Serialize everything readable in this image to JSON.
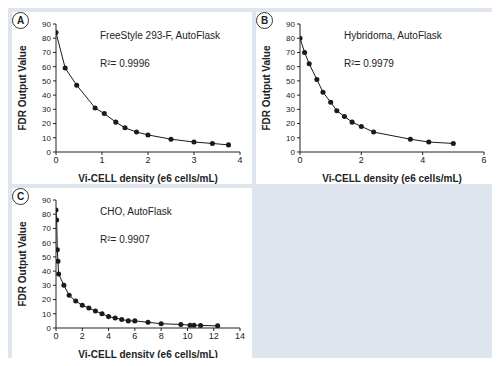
{
  "chart_data": [
    {
      "type": "scatter",
      "panel": "A",
      "title": "FreeStyle 293-F, AutoFlask",
      "annotation": "R²= 0.9996",
      "x_label": "Vi-CELL density (e6 cells/mL)",
      "y_label": "FDR Output Value",
      "x": [
        0,
        0.2,
        0.45,
        0.85,
        1.05,
        1.3,
        1.5,
        1.75,
        2.0,
        2.5,
        3.0,
        3.4,
        3.75
      ],
      "values": [
        84,
        59,
        47,
        31,
        27,
        21,
        17,
        14,
        12,
        9,
        7,
        6,
        5
      ],
      "xlim": [
        0,
        4
      ],
      "xticks": [
        0,
        1,
        2,
        3,
        4
      ],
      "ylim": [
        0,
        90
      ],
      "yticks": [
        0,
        10,
        20,
        30,
        40,
        50,
        60,
        70,
        80,
        90
      ],
      "color": "#1a1a1a",
      "marker": "circle",
      "line_style": "solid",
      "grid": false
    },
    {
      "type": "scatter",
      "panel": "B",
      "title": "Hybridoma, AutoFlask",
      "annotation": "R²= 0.9979",
      "x_label": "Vi-CELL density (e6 cells/mL)",
      "y_label": "FDR Output Value",
      "x": [
        0,
        0.15,
        0.3,
        0.55,
        0.75,
        1.0,
        1.2,
        1.45,
        1.7,
        2.0,
        2.4,
        3.6,
        4.2,
        5.0
      ],
      "values": [
        80,
        70,
        62,
        51,
        42,
        35,
        29,
        25,
        21,
        18,
        14,
        9,
        7,
        6
      ],
      "xlim": [
        0,
        6
      ],
      "xticks": [
        0,
        2,
        4,
        6
      ],
      "ylim": [
        0,
        90
      ],
      "yticks": [
        0,
        10,
        20,
        30,
        40,
        50,
        60,
        70,
        80,
        90
      ],
      "color": "#1a1a1a",
      "marker": "circle",
      "line_style": "solid",
      "grid": false
    },
    {
      "type": "scatter",
      "panel": "C",
      "title": "CHO, AutoFlask",
      "annotation": "R²= 0.9907",
      "x_label": "Vi-CELL density (e6 cells/mL)",
      "y_label": "FDR Output Value",
      "x": [
        0,
        0.05,
        0.1,
        0.15,
        0.2,
        0.6,
        1.0,
        1.5,
        2.0,
        2.5,
        3.0,
        3.5,
        4.0,
        4.5,
        5.0,
        5.5,
        6.0,
        7.0,
        8.0,
        9.5,
        10.2,
        10.5,
        11.0,
        12.3
      ],
      "values": [
        83,
        76,
        55,
        47,
        38,
        30,
        23,
        19,
        16,
        14,
        12,
        10,
        8,
        7,
        6,
        5,
        5,
        4,
        3,
        2.5,
        2,
        2,
        1.8,
        1.5
      ],
      "xlim": [
        0,
        14
      ],
      "xticks": [
        0,
        2,
        4,
        6,
        8,
        10,
        12,
        14
      ],
      "ylim": [
        0,
        90
      ],
      "yticks": [
        0,
        10,
        20,
        30,
        40,
        50,
        60,
        70,
        80,
        90
      ],
      "color": "#1a1a1a",
      "marker": "circle",
      "line_style": "solid",
      "grid": false
    }
  ]
}
